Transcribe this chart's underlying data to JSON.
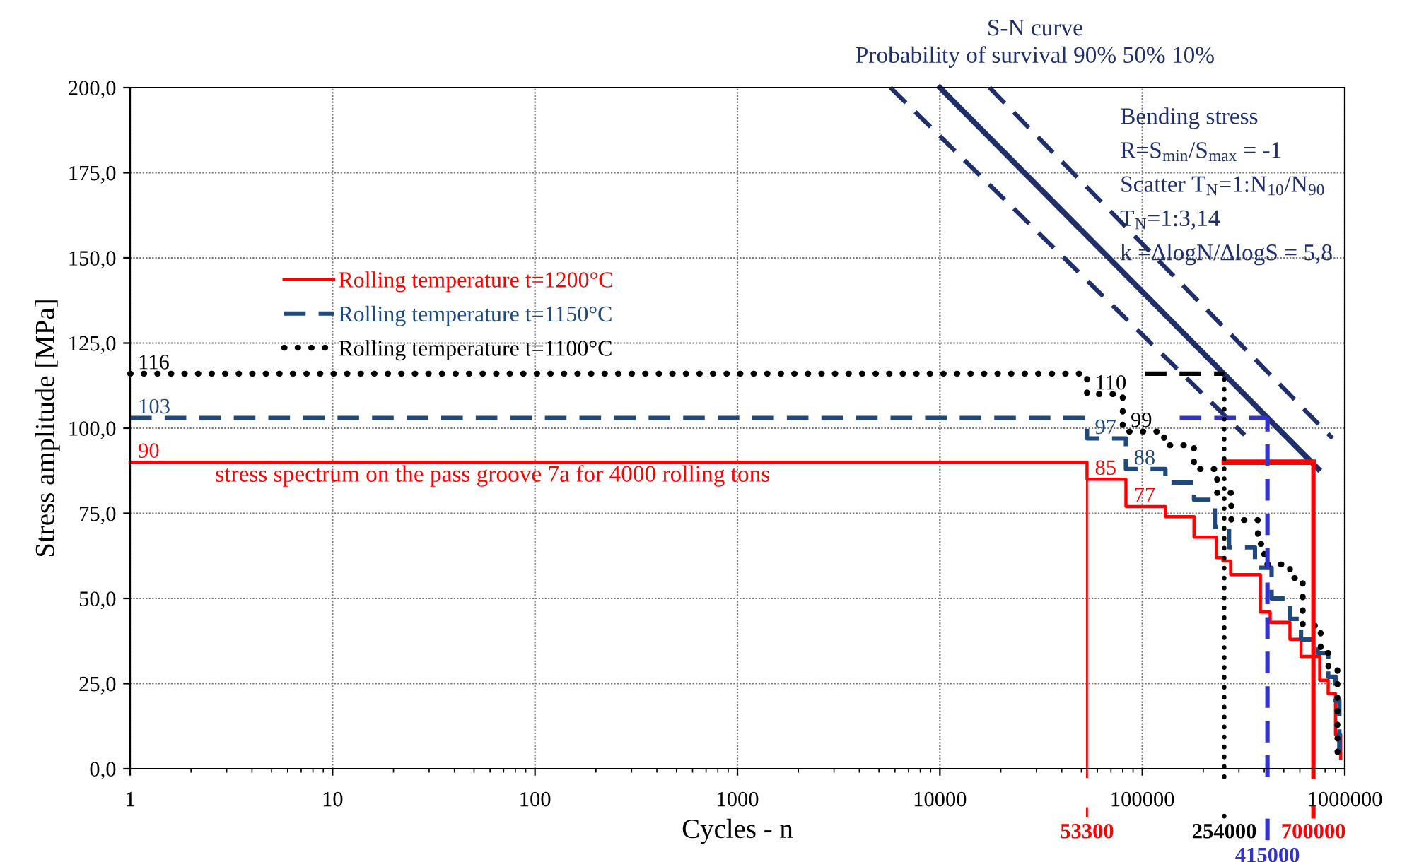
{
  "chart_data": {
    "type": "step",
    "xlabel": "Cycles - n",
    "ylabel": "Stress amplitude [MPa]",
    "log": "x",
    "xlim": [
      1,
      1000000
    ],
    "xticks": [
      1,
      10,
      100,
      1000,
      10000,
      100000,
      1000000
    ],
    "ylim": [
      0,
      200
    ],
    "yticks": [
      {
        "value": 0,
        "label": "0,0"
      },
      {
        "value": 25,
        "label": "25,0"
      },
      {
        "value": 50,
        "label": "50,0"
      },
      {
        "value": 75,
        "label": "75,0"
      },
      {
        "value": 100,
        "label": "100,0"
      },
      {
        "value": 125,
        "label": "125,0"
      },
      {
        "value": 150,
        "label": "150,0"
      },
      {
        "value": 175,
        "label": "175,0"
      },
      {
        "value": 200,
        "label": "200,0"
      }
    ],
    "grid": true,
    "legend": "top left",
    "series": [
      {
        "name": "Rolling temperature t=1200°C",
        "color": "#ff0000",
        "line_style": "solid",
        "x": [
          1,
          53300,
          83000,
          130000,
          180000,
          232000,
          250000,
          273000,
          383000,
          428000,
          536000,
          608000,
          752000,
          828000,
          900000,
          955000
        ],
        "values": [
          90,
          85,
          77,
          74,
          68,
          62,
          61,
          57,
          46,
          43,
          38,
          33,
          26,
          22,
          10,
          3
        ]
      },
      {
        "name": "Rolling temperature t=1150°C",
        "color": "#1f497d",
        "line_style": "dashed",
        "x": [
          1,
          53300,
          83000,
          130000,
          180000,
          228000,
          268000,
          360000,
          435000,
          536000,
          608000,
          735000,
          828000,
          900000,
          940000
        ],
        "values": [
          103,
          97,
          88,
          84,
          79,
          71,
          65,
          59,
          50,
          44,
          38,
          34,
          27,
          20,
          5
        ]
      },
      {
        "name": "Rolling temperature t=1100°C",
        "color": "#000000",
        "line_style": "dotted",
        "x": [
          1,
          53300,
          80000,
          128000,
          180000,
          234000,
          275000,
          372000,
          400000,
          536000,
          620000,
          760000,
          830000,
          920000,
          950000
        ],
        "values": [
          116,
          110,
          99,
          95,
          88,
          81,
          73,
          66,
          60,
          56,
          42,
          34,
          30,
          3,
          3
        ]
      },
      {
        "type": "line",
        "color": "#1f2f6b",
        "line_style": "dashed",
        "x": [
          5700,
          320000
        ],
        "values": [
          200,
          98
        ]
      },
      {
        "type": "line",
        "color": "#1f2f6b",
        "line_style": "solid",
        "x": [
          10000,
          740000
        ],
        "values": [
          200,
          88
        ]
      },
      {
        "type": "line",
        "color": "#1f2f6b",
        "line_style": "dashed",
        "x": [
          17600,
          870000
        ],
        "values": [
          200,
          97
        ]
      },
      {
        "type": "line",
        "color": "#000000",
        "line_style": "dashed",
        "x": [
          103000,
          254000
        ],
        "values": [
          116,
          116
        ]
      },
      {
        "type": "line",
        "color": "#3333cc",
        "line_style": "dashed",
        "x": [
          153000,
          415000
        ],
        "values": [
          103,
          103
        ]
      },
      {
        "type": "line",
        "color": "#ff0000",
        "line_style": "solid",
        "x": [
          254000,
          700000
        ],
        "values": [
          90,
          90
        ]
      }
    ],
    "ref_lines": [
      {
        "axis": "x",
        "value": 53300,
        "label": "53300",
        "color": "#ff0000",
        "line_style": "solid"
      },
      {
        "axis": "x",
        "value": 254000,
        "label": "254000",
        "color": "#000000",
        "line_style": "dotted"
      },
      {
        "axis": "x",
        "value": 415000,
        "label": "415000",
        "color": "#3333cc",
        "line_style": "dashed"
      },
      {
        "axis": "x",
        "value": 700000,
        "label": "700000",
        "color": "#ff0000",
        "line_style": "solid"
      }
    ],
    "annotations": [
      {
        "text": "116",
        "x": 1,
        "y": 116
      },
      {
        "text": "103",
        "x": 1,
        "y": 103
      },
      {
        "text": "90",
        "x": 1,
        "y": 90
      },
      {
        "text": "110",
        "x": 53300,
        "y": 110
      },
      {
        "text": "97",
        "x": 53300,
        "y": 97
      },
      {
        "text": "85",
        "x": 53300,
        "y": 85
      },
      {
        "text": "99",
        "x": 80000,
        "y": 99
      },
      {
        "text": "88",
        "x": 83000,
        "y": 88
      },
      {
        "text": "77",
        "x": 83000,
        "y": 77
      },
      "S-N curve",
      "Probability of survival 90% 50% 10%",
      "Bending stress",
      "R=S$_{min}$/S$_{max}$ = -1",
      "Scatter T$_{N}$=1:N$_{10}$/N$_{90}$",
      "T$_{N}$=1:3,14",
      "k =ΔlogN/ΔlogS = 5,8",
      "stress spectrum on the pass groove 7a for 4000 rolling tons"
    ]
  }
}
